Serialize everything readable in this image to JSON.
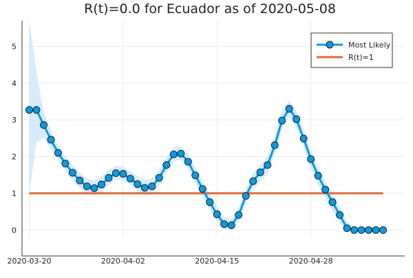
{
  "chart_data": {
    "type": "line",
    "title": "R(t)=0.0 for Ecuador as of 2020-05-08",
    "xlabel": "",
    "ylabel": "",
    "x_start": "2020-03-20",
    "x_tick_labels": [
      "2020-03-20",
      "2020-04-02",
      "2020-04-15",
      "2020-04-28"
    ],
    "x_tick_dates": [
      "2020-03-20",
      "2020-04-02",
      "2020-04-15",
      "2020-04-28"
    ],
    "xlim": [
      "2020-03-19",
      "2020-05-11"
    ],
    "ylim": [
      -0.2,
      5.7
    ],
    "y_ticks": [
      0,
      1,
      2,
      3,
      4,
      5
    ],
    "grid": true,
    "legend_position": "top-right",
    "series": [
      {
        "name": "Most Likely",
        "color": "#0d99e0",
        "marker": "circle",
        "dates": [
          "2020-03-20",
          "2020-03-21",
          "2020-03-22",
          "2020-03-23",
          "2020-03-24",
          "2020-03-25",
          "2020-03-26",
          "2020-03-27",
          "2020-03-28",
          "2020-03-29",
          "2020-03-30",
          "2020-03-31",
          "2020-04-01",
          "2020-04-02",
          "2020-04-03",
          "2020-04-04",
          "2020-04-05",
          "2020-04-06",
          "2020-04-07",
          "2020-04-08",
          "2020-04-09",
          "2020-04-10",
          "2020-04-11",
          "2020-04-12",
          "2020-04-13",
          "2020-04-14",
          "2020-04-15",
          "2020-04-16",
          "2020-04-17",
          "2020-04-18",
          "2020-04-19",
          "2020-04-20",
          "2020-04-21",
          "2020-04-22",
          "2020-04-23",
          "2020-04-24",
          "2020-04-25",
          "2020-04-26",
          "2020-04-27",
          "2020-04-28",
          "2020-04-29",
          "2020-04-30",
          "2020-05-01",
          "2020-05-02",
          "2020-05-03",
          "2020-05-04",
          "2020-05-05",
          "2020-05-06",
          "2020-05-07",
          "2020-05-08"
        ],
        "values": [
          3.27,
          3.27,
          2.86,
          2.46,
          2.1,
          1.81,
          1.56,
          1.35,
          1.19,
          1.14,
          1.24,
          1.42,
          1.55,
          1.53,
          1.4,
          1.25,
          1.15,
          1.19,
          1.42,
          1.77,
          2.06,
          2.08,
          1.86,
          1.49,
          1.12,
          0.76,
          0.43,
          0.16,
          0.13,
          0.41,
          0.93,
          1.33,
          1.57,
          1.77,
          2.31,
          2.98,
          3.3,
          3.02,
          2.49,
          1.93,
          1.48,
          1.1,
          0.76,
          0.41,
          0.05,
          0.0,
          0.0,
          0.0,
          0.0,
          0.0
        ],
        "band_lower": [
          1.0,
          2.4,
          2.5,
          2.2,
          1.9,
          1.6,
          1.35,
          1.15,
          0.98,
          0.92,
          1.03,
          1.22,
          1.38,
          1.36,
          1.22,
          1.05,
          0.94,
          0.97,
          1.22,
          1.58,
          1.88,
          1.9,
          1.66,
          1.28,
          0.9,
          0.55,
          0.25,
          0.03,
          0.02,
          0.24,
          0.72,
          1.1,
          1.33,
          1.52,
          2.06,
          2.75,
          3.08,
          2.8,
          2.25,
          1.68,
          1.22,
          0.86,
          0.52,
          0.2,
          0.0,
          0.0,
          0.0,
          0.0,
          0.0,
          0.0
        ],
        "band_upper": [
          5.7,
          4.3,
          3.2,
          2.7,
          2.3,
          2.0,
          1.78,
          1.57,
          1.4,
          1.36,
          1.46,
          1.63,
          1.75,
          1.73,
          1.6,
          1.46,
          1.36,
          1.41,
          1.64,
          1.97,
          2.26,
          2.28,
          2.07,
          1.7,
          1.34,
          0.98,
          0.63,
          0.36,
          0.3,
          0.6,
          1.13,
          1.55,
          1.8,
          2.02,
          2.55,
          3.22,
          3.52,
          3.25,
          2.72,
          2.16,
          1.72,
          1.33,
          0.99,
          0.63,
          0.22,
          0.1,
          0.08,
          0.08,
          0.08,
          0.08
        ],
        "band_color": "#cfe8fb"
      },
      {
        "name": "R(t)=1",
        "color": "#e0693a",
        "dates": [
          "2020-03-20",
          "2020-05-08"
        ],
        "values": [
          1,
          1
        ]
      }
    ]
  }
}
